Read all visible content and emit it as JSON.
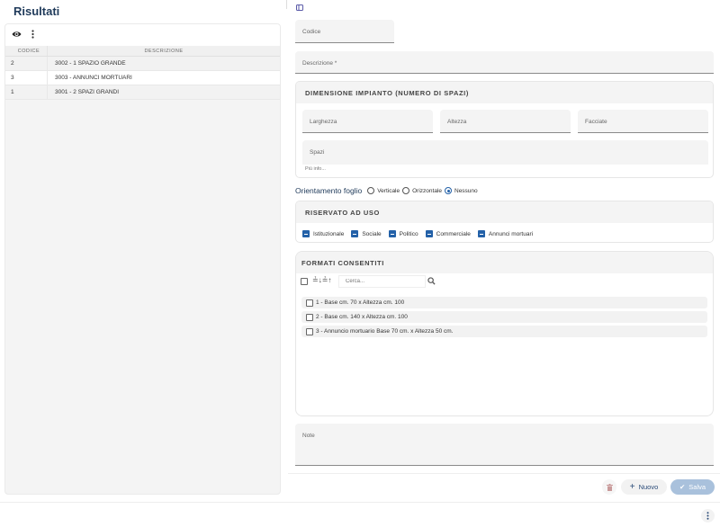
{
  "results": {
    "title": "Risultati",
    "columns": [
      "CODICE",
      "DESCRIZIONE"
    ],
    "rows": [
      {
        "code": "2",
        "description": "3002 - 1 SPAZIO GRANDE"
      },
      {
        "code": "3",
        "description": "3003 - ANNUNCI MORTUARI"
      },
      {
        "code": "1",
        "description": "3001 - 2 SPAZI GRANDI"
      }
    ]
  },
  "form": {
    "codice_label": "Codice",
    "descrizione_label": "Descrizione *",
    "dimensione": {
      "title": "DIMENSIONE IMPIANTO (NUMERO DI SPAZI)",
      "larghezza": "Larghezza",
      "altezza": "Altezza",
      "facciate": "Facciate",
      "spazi": "Spazi",
      "more_info": "Più info..."
    },
    "orientamento": {
      "label": "Orientamento foglio",
      "options": [
        "Verticale",
        "Orizzontale",
        "Nessuno"
      ],
      "selected": "Nessuno"
    },
    "riservato": {
      "title": "RISERVATO AD USO",
      "options": [
        "Istituzionale",
        "Sociale",
        "Politico",
        "Commerciale",
        "Annunci mortuari"
      ]
    },
    "formati": {
      "title": "FORMATI CONSENTITI",
      "search_placeholder": "Cerca...",
      "items": [
        "1 - Base cm. 70 x Altezza cm. 100",
        "2 - Base cm. 140 x Altezza cm. 100",
        "3 - Annuncio mortuario Base 70 cm. x Altezza 50 cm."
      ]
    },
    "note_label": "Note"
  },
  "actions": {
    "new_label": "Nuovo",
    "save_label": "Salva"
  },
  "colors": {
    "accent": "#2361a8",
    "title": "#1f3a5a",
    "save": "#a9c1dc",
    "delete": "#c99a9a"
  }
}
